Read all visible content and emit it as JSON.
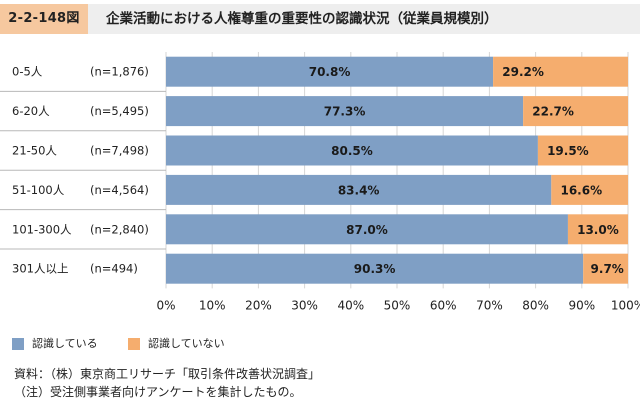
{
  "header": {
    "figure_number": "2-2-148図",
    "title": "企業活動における人権尊重の重要性の認識状況（従業員規模別）"
  },
  "colors": {
    "recognized": "#7f9fc5",
    "not_recognized": "#f5ad6e",
    "gridline": "#d6d6d6",
    "separator": "#b8b8b8"
  },
  "chart_data": {
    "type": "bar",
    "orientation": "horizontal",
    "stacked": true,
    "categories": [
      "0-5人",
      "6-20人",
      "21-50人",
      "51-100人",
      "101-300人",
      "301人以上"
    ],
    "sample_sizes": [
      "(n=1,876)",
      "(n=5,495)",
      "(n=7,498)",
      "(n=4,564)",
      "(n=2,840)",
      "(n=494)"
    ],
    "series": [
      {
        "name": "認識している",
        "values": [
          70.8,
          77.3,
          80.5,
          83.4,
          87.0,
          90.3
        ],
        "labels": [
          "70.8%",
          "77.3%",
          "80.5%",
          "83.4%",
          "87.0%",
          "90.3%"
        ]
      },
      {
        "name": "認識していない",
        "values": [
          29.2,
          22.7,
          19.5,
          16.6,
          13.0,
          9.7
        ],
        "labels": [
          "29.2%",
          "22.7%",
          "19.5%",
          "16.6%",
          "13.0%",
          "9.7%"
        ]
      }
    ],
    "xlim": [
      0,
      100
    ],
    "xticks": [
      "0%",
      "10%",
      "20%",
      "30%",
      "40%",
      "50%",
      "60%",
      "70%",
      "80%",
      "90%",
      "100%"
    ],
    "grid": true,
    "legend_position": "bottom-left"
  },
  "legend": {
    "recognized_label": "認識している",
    "not_recognized_label": "認識していない"
  },
  "notes": {
    "source": "資料：（株）東京商工リサーチ「取引条件改善状況調査」",
    "note": "（注）受注側事業者向けアンケートを集計したもの。"
  }
}
